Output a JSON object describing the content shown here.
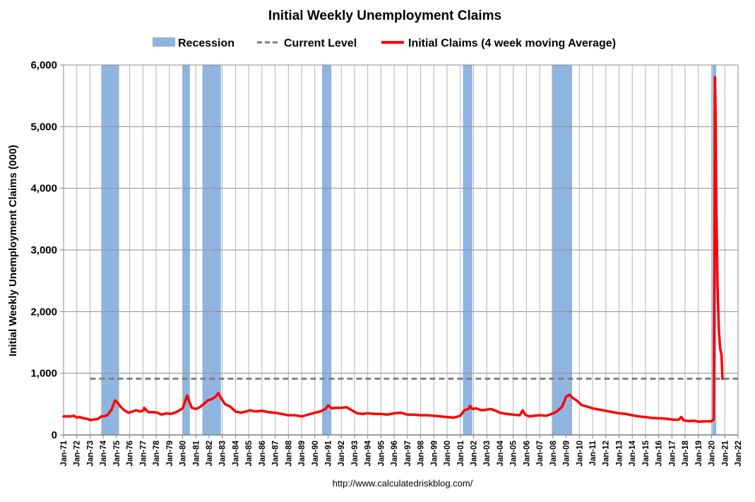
{
  "chart_data": {
    "type": "line",
    "title": "Initial Weekly Unemployment Claims",
    "ylabel": "Initial Weekly Unemployment Claims (000)",
    "xlabel": "",
    "source": "http://www.calculatedriskblog.com/",
    "ylim": [
      0,
      6000
    ],
    "xlim": [
      1971,
      2022
    ],
    "grid": true,
    "legend_position": "top",
    "y_ticks": [
      0,
      1000,
      2000,
      3000,
      4000,
      5000,
      6000
    ],
    "y_tick_labels": [
      "0",
      "1,000",
      "2,000",
      "3,000",
      "4,000",
      "5,000",
      "6,000"
    ],
    "x_tick_labels": [
      "Jan-71",
      "Jan-72",
      "Jan-73",
      "Jan-74",
      "Jan-75",
      "Jan-76",
      "Jan-77",
      "Jan-78",
      "Jan-79",
      "Jan-80",
      "Jan-81",
      "Jan-82",
      "Jan-83",
      "Jan-84",
      "Jan-85",
      "Jan-86",
      "Jan-87",
      "Jan-88",
      "Jan-89",
      "Jan-90",
      "Jan-91",
      "Jan-92",
      "Jan-93",
      "Jan-94",
      "Jan-95",
      "Jan-96",
      "Jan-97",
      "Jan-98",
      "Jan-99",
      "Jan-00",
      "Jan-01",
      "Jan-02",
      "Jan-03",
      "Jan-04",
      "Jan-05",
      "Jan-06",
      "Jan-07",
      "Jan-08",
      "Jan-09",
      "Jan-10",
      "Jan-11",
      "Jan-12",
      "Jan-13",
      "Jan-14",
      "Jan-15",
      "Jan-16",
      "Jan-17",
      "Jan-18",
      "Jan-19",
      "Jan-20",
      "Jan-21",
      "Jan-22"
    ],
    "legend": [
      {
        "name": "Recession",
        "color": "#8db4e2",
        "kind": "area"
      },
      {
        "name": "Current Level",
        "color": "#808080",
        "kind": "dashed"
      },
      {
        "name": "Initial Claims (4 week moving Average)",
        "color": "#ff0000",
        "kind": "line"
      }
    ],
    "recessions": [
      {
        "start": "Nov-73",
        "end": "Mar-75",
        "start_year": 1973.85,
        "end_year": 1975.2
      },
      {
        "start": "Jan-80",
        "end": "Jul-80",
        "start_year": 1980.0,
        "end_year": 1980.55
      },
      {
        "start": "Jul-81",
        "end": "Nov-82",
        "start_year": 1981.5,
        "end_year": 1982.9
      },
      {
        "start": "Jul-90",
        "end": "Mar-91",
        "start_year": 1990.55,
        "end_year": 1991.25
      },
      {
        "start": "Mar-01",
        "end": "Nov-01",
        "start_year": 2001.2,
        "end_year": 2001.9
      },
      {
        "start": "Dec-07",
        "end": "Jun-09",
        "start_year": 2007.92,
        "end_year": 2009.45
      },
      {
        "start": "Feb-20",
        "end": "Apr-20",
        "start_year": 2020.05,
        "end_year": 2020.35
      }
    ],
    "current_level": {
      "value": 912,
      "x_start_year": 1973.0,
      "x_end_year": 2022.0
    },
    "series": [
      {
        "name": "Initial Claims (4 week moving Average)",
        "color": "#ff0000",
        "x": [
          1971.0,
          1971.5,
          1971.8,
          1972.0,
          1972.2,
          1972.5,
          1972.8,
          1973.0,
          1973.3,
          1973.6,
          1973.85,
          1974.0,
          1974.3,
          1974.6,
          1974.9,
          1975.1,
          1975.3,
          1975.6,
          1975.9,
          1976.2,
          1976.5,
          1976.8,
          1977.05,
          1977.1,
          1977.4,
          1977.8,
          1978.1,
          1978.4,
          1978.8,
          1979.1,
          1979.4,
          1979.7,
          1980.0,
          1980.2,
          1980.35,
          1980.5,
          1980.7,
          1981.0,
          1981.3,
          1981.6,
          1981.9,
          1982.2,
          1982.5,
          1982.7,
          1982.9,
          1983.2,
          1983.6,
          1984.0,
          1984.4,
          1984.8,
          1985.1,
          1985.5,
          1986.0,
          1986.5,
          1987.0,
          1987.5,
          1988.0,
          1988.5,
          1989.0,
          1989.5,
          1990.0,
          1990.4,
          1990.8,
          1991.0,
          1991.3,
          1991.6,
          1992.0,
          1992.4,
          1992.8,
          1993.2,
          1993.6,
          1994.0,
          1994.5,
          1995.0,
          1995.5,
          1996.0,
          1996.5,
          1997.0,
          1997.5,
          1998.0,
          1998.5,
          1999.0,
          1999.5,
          2000.0,
          2000.5,
          2001.0,
          2001.3,
          2001.6,
          2001.75,
          2001.9,
          2002.2,
          2002.6,
          2003.0,
          2003.3,
          2003.7,
          2004.0,
          2004.5,
          2005.0,
          2005.5,
          2005.72,
          2005.9,
          2006.2,
          2006.6,
          2007.0,
          2007.5,
          2007.9,
          2008.3,
          2008.7,
          2009.0,
          2009.25,
          2009.5,
          2009.8,
          2010.2,
          2010.6,
          2011.0,
          2011.5,
          2012.0,
          2012.5,
          2013.0,
          2013.5,
          2014.0,
          2014.5,
          2015.0,
          2015.5,
          2016.0,
          2016.5,
          2017.0,
          2017.5,
          2017.7,
          2017.9,
          2018.3,
          2018.7,
          2019.0,
          2019.5,
          2020.0,
          2020.15,
          2020.22,
          2020.26,
          2020.3,
          2020.35,
          2020.45,
          2020.55,
          2020.65,
          2020.75,
          2020.82
        ],
        "values": [
          300,
          300,
          310,
          280,
          290,
          270,
          260,
          240,
          250,
          260,
          300,
          300,
          320,
          400,
          560,
          520,
          460,
          400,
          360,
          380,
          400,
          380,
          400,
          440,
          370,
          370,
          360,
          330,
          350,
          340,
          360,
          390,
          430,
          550,
          640,
          540,
          440,
          420,
          450,
          500,
          560,
          580,
          620,
          680,
          600,
          500,
          460,
          380,
          360,
          380,
          400,
          380,
          390,
          370,
          360,
          340,
          320,
          320,
          300,
          330,
          360,
          380,
          420,
          480,
          430,
          440,
          440,
          450,
          400,
          350,
          340,
          350,
          340,
          340,
          330,
          350,
          360,
          330,
          330,
          320,
          320,
          310,
          300,
          290,
          280,
          310,
          400,
          420,
          470,
          420,
          430,
          400,
          410,
          420,
          390,
          360,
          340,
          330,
          320,
          400,
          330,
          300,
          310,
          320,
          310,
          340,
          380,
          460,
          620,
          650,
          600,
          560,
          480,
          460,
          430,
          410,
          390,
          370,
          350,
          340,
          320,
          300,
          290,
          275,
          270,
          265,
          250,
          245,
          290,
          235,
          225,
          230,
          215,
          220,
          220,
          250,
          2800,
          5800,
          5200,
          3800,
          2400,
          1700,
          1400,
          1300,
          912
        ]
      }
    ]
  }
}
